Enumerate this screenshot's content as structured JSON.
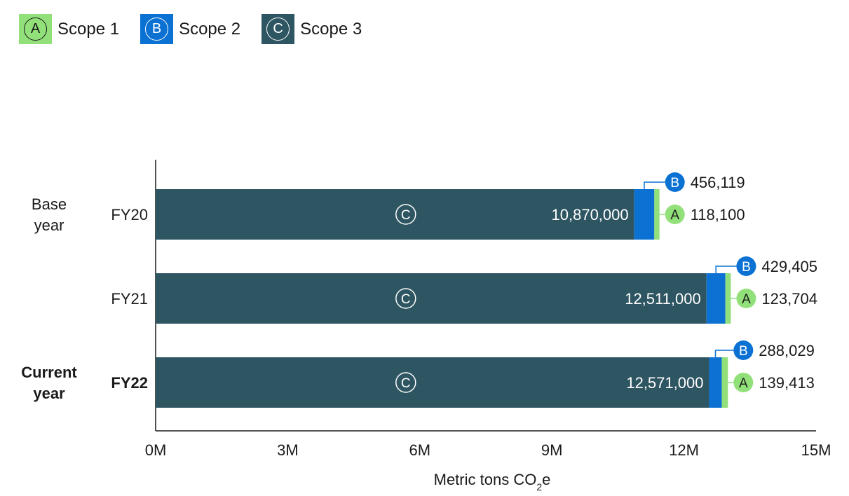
{
  "colors": {
    "scope1": "#92e07a",
    "scope2": "#0b72d4",
    "scope3": "#2e5562",
    "axis": "#1a1a1a"
  },
  "legend": [
    {
      "letter": "A",
      "label": "Scope 1"
    },
    {
      "letter": "B",
      "label": "Scope 2"
    },
    {
      "letter": "C",
      "label": "Scope 3"
    }
  ],
  "chart_data": {
    "type": "bar",
    "orientation": "horizontal",
    "stacked": true,
    "categories": [
      "FY20",
      "FY21",
      "FY22"
    ],
    "group_labels": [
      {
        "line1": "Base",
        "line2": "year",
        "category": "FY20",
        "bold": false
      },
      {
        "line1": "Current",
        "line2": "year",
        "category": "FY22",
        "bold": true
      }
    ],
    "series": [
      {
        "name": "Scope 3",
        "letter": "C",
        "values": [
          10870000,
          12511000,
          12571000
        ],
        "labels": [
          "10,870,000",
          "12,511,000",
          "12,571,000"
        ]
      },
      {
        "name": "Scope 2",
        "letter": "B",
        "values": [
          456119,
          429405,
          288029
        ],
        "labels": [
          "456,119",
          "429,405",
          "288,029"
        ]
      },
      {
        "name": "Scope 1",
        "letter": "A",
        "values": [
          118100,
          123704,
          139413
        ],
        "labels": [
          "118,100",
          "123,704",
          "139,413"
        ]
      }
    ],
    "xlim": [
      0,
      15000000
    ],
    "xticks": [
      0,
      3000000,
      6000000,
      9000000,
      12000000,
      15000000
    ],
    "xtick_labels": [
      "0M",
      "3M",
      "6M",
      "9M",
      "12M",
      "15M"
    ],
    "xlabel_main": "Metric tons CO",
    "xlabel_sub": "2",
    "xlabel_tail": "e",
    "grid": false,
    "legend_position": "top-left"
  }
}
